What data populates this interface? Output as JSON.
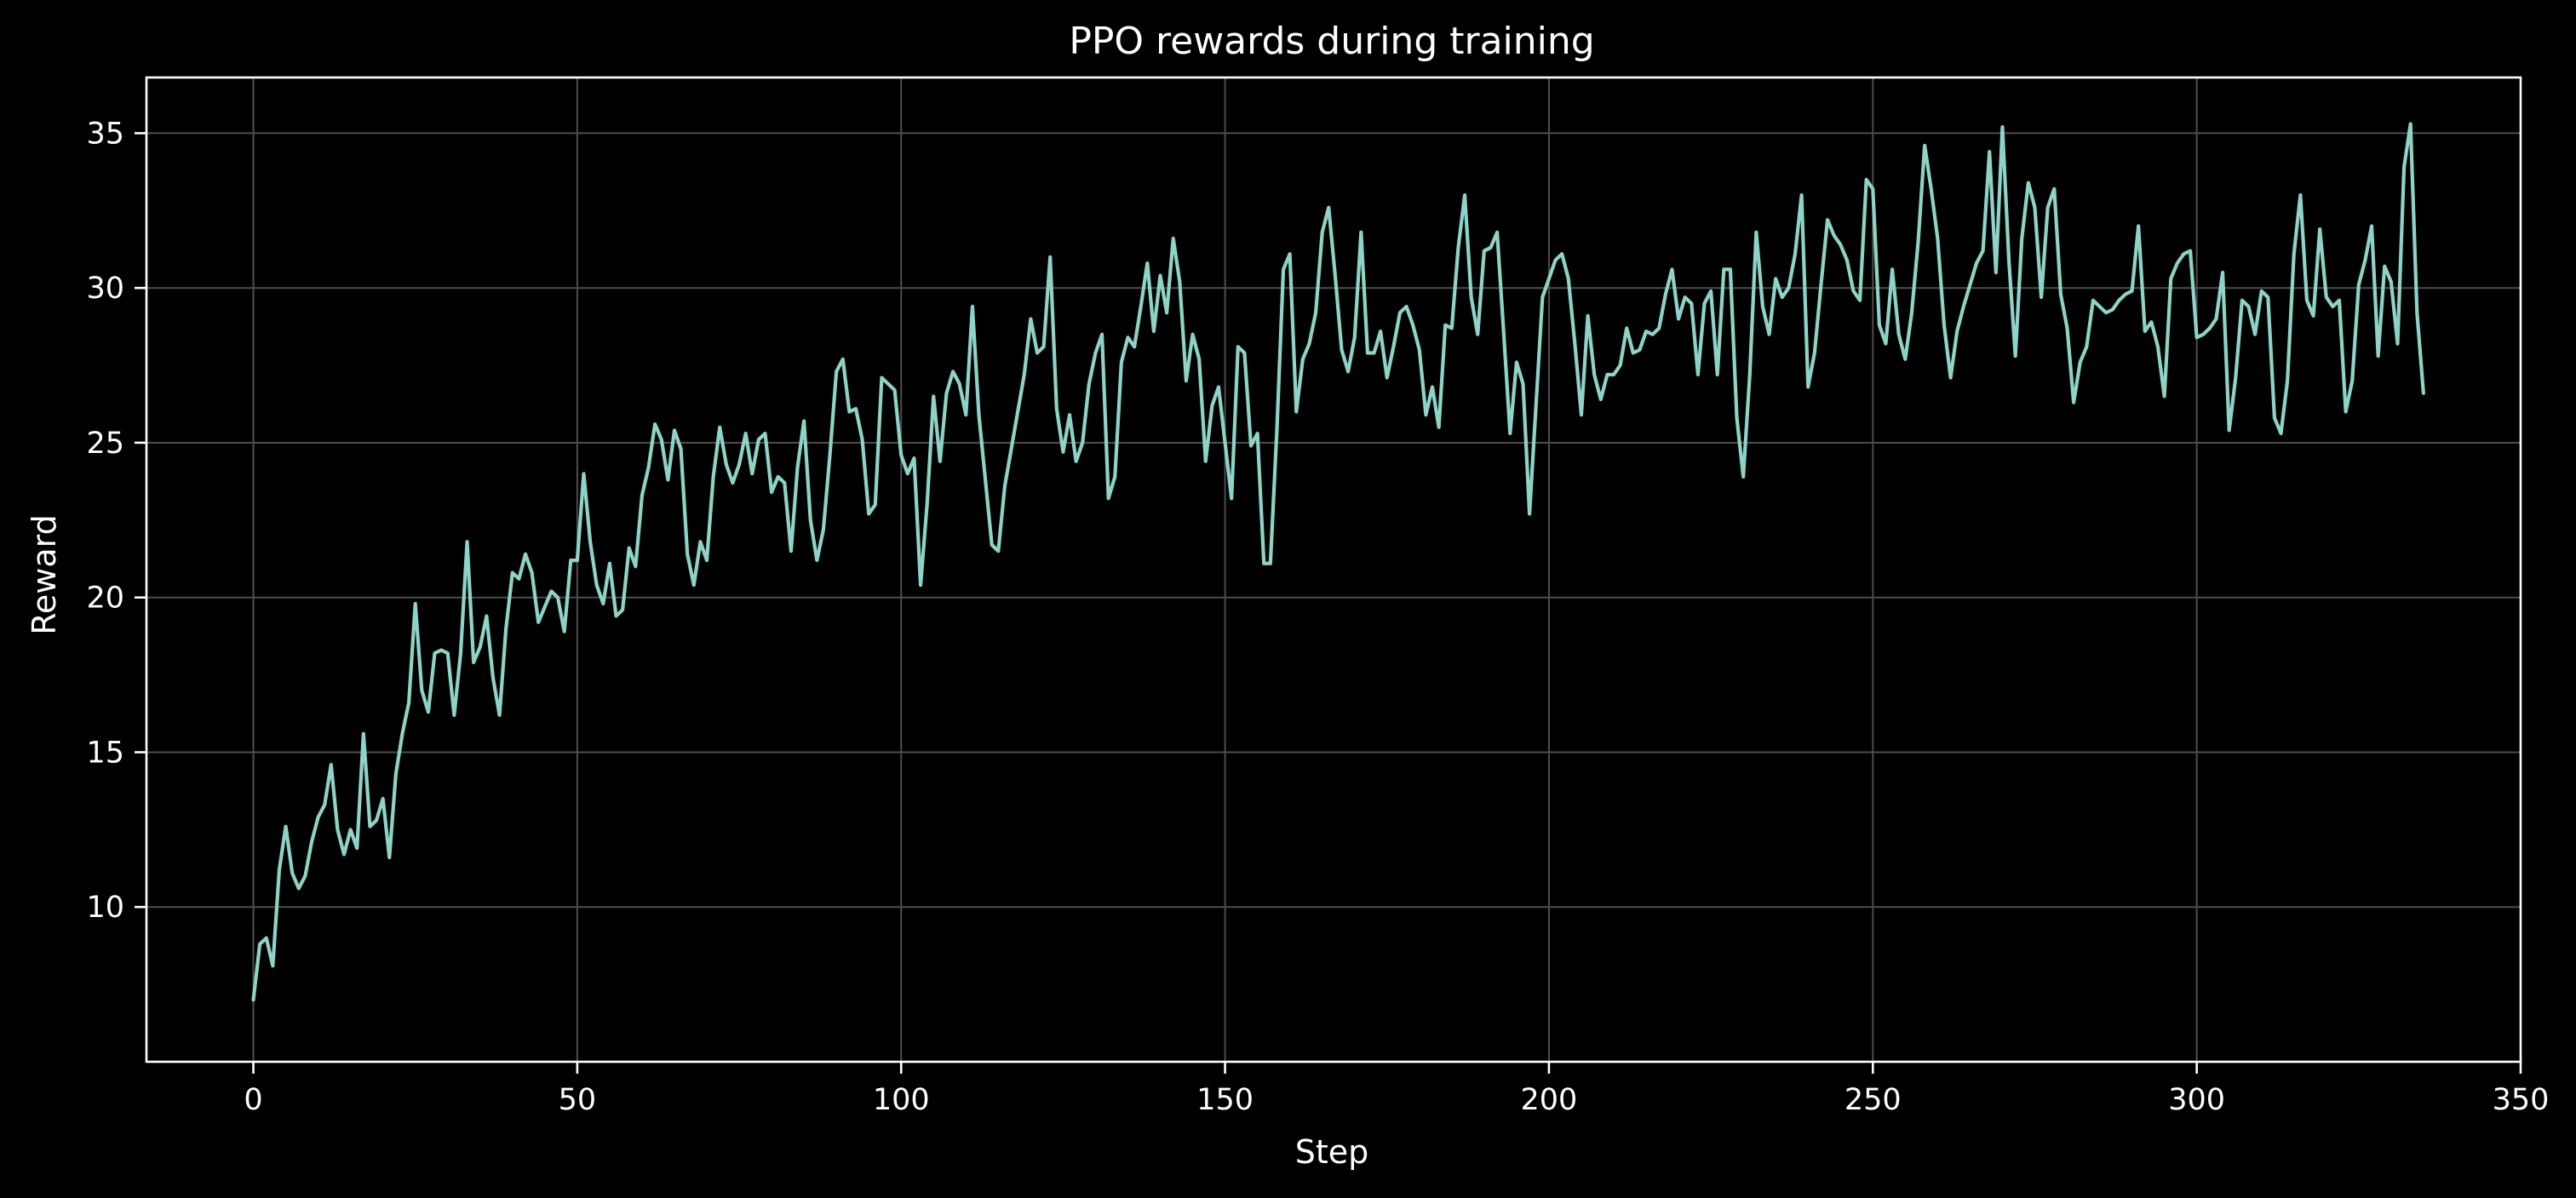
{
  "chart_data": {
    "type": "line",
    "title": "PPO rewards during training",
    "xlabel": "Step",
    "ylabel": "Reward",
    "xlim": [
      -16.5,
      350
    ],
    "ylim": [
      5.0,
      36.8
    ],
    "xticks": [
      0,
      50,
      100,
      150,
      200,
      250,
      300,
      350
    ],
    "yticks": [
      10,
      15,
      20,
      25,
      30,
      35
    ],
    "grid": true,
    "background": "#000000",
    "line_color": "#8dd3c7",
    "axis_color": "#ffffff",
    "grid_color": "#4d4d4d",
    "series": [
      {
        "name": "",
        "values": [
          7.0,
          8.8,
          9.0,
          8.1,
          11.2,
          12.6,
          11.1,
          10.6,
          11.0,
          12.1,
          12.9,
          13.3,
          14.6,
          12.5,
          11.7,
          12.5,
          11.9,
          15.6,
          12.6,
          12.8,
          13.5,
          11.6,
          14.3,
          15.6,
          16.6,
          19.8,
          17.0,
          16.3,
          18.2,
          18.3,
          18.2,
          16.2,
          18.2,
          21.8,
          17.9,
          18.4,
          19.4,
          17.4,
          16.2,
          19.0,
          20.8,
          20.6,
          21.4,
          20.8,
          19.2,
          19.7,
          20.2,
          20.0,
          18.9,
          21.2,
          21.2,
          24.0,
          21.8,
          20.4,
          19.8,
          21.1,
          19.4,
          19.6,
          21.6,
          21.0,
          23.3,
          24.2,
          25.6,
          25.1,
          23.8,
          25.4,
          24.8,
          21.4,
          20.4,
          21.8,
          21.2,
          23.9,
          25.5,
          24.3,
          23.7,
          24.3,
          25.3,
          24.0,
          25.1,
          25.3,
          23.4,
          23.9,
          23.7,
          21.5,
          24.2,
          25.7,
          22.5,
          21.2,
          22.2,
          24.6,
          27.3,
          27.7,
          26.0,
          26.1,
          25.1,
          22.7,
          23.0,
          27.1,
          26.9,
          26.7,
          24.6,
          24.0,
          24.5,
          20.4,
          23.0,
          26.5,
          24.4,
          26.6,
          27.3,
          26.9,
          25.9,
          29.4,
          25.9,
          23.8,
          21.7,
          21.5,
          23.6,
          24.8,
          26.0,
          27.2,
          29.0,
          27.9,
          28.1,
          31.0,
          26.1,
          24.7,
          25.9,
          24.4,
          25.0,
          26.9,
          27.9,
          28.5,
          23.2,
          23.9,
          27.6,
          28.4,
          28.1,
          29.4,
          30.8,
          28.6,
          30.4,
          29.2,
          31.6,
          30.2,
          27.0,
          28.5,
          27.7,
          24.4,
          26.2,
          26.8,
          25.0,
          23.2,
          28.1,
          27.9,
          24.9,
          25.3,
          21.1,
          21.1,
          25.4,
          30.6,
          31.1,
          26.0,
          27.7,
          28.2,
          29.2,
          31.8,
          32.6,
          30.4,
          28.0,
          27.3,
          28.4,
          31.8,
          27.9,
          27.9,
          28.6,
          27.1,
          28.1,
          29.2,
          29.4,
          28.8,
          28.0,
          25.9,
          26.8,
          25.5,
          28.8,
          28.7,
          31.3,
          33.0,
          29.7,
          28.5,
          31.2,
          31.3,
          31.8,
          28.6,
          25.3,
          27.6,
          26.9,
          22.7,
          26.2,
          29.7,
          30.3,
          30.9,
          31.1,
          30.3,
          28.2,
          25.9,
          29.1,
          27.2,
          26.4,
          27.2,
          27.2,
          27.5,
          28.7,
          27.9,
          28.0,
          28.6,
          28.5,
          28.7,
          29.8,
          30.6,
          29.0,
          29.7,
          29.5,
          27.2,
          29.5,
          29.9,
          27.2,
          30.6,
          30.6,
          25.8,
          23.9,
          27.2,
          31.8,
          29.4,
          28.5,
          30.3,
          29.7,
          30.0,
          31.1,
          33.0,
          26.8,
          27.9,
          30.1,
          32.2,
          31.7,
          31.4,
          30.9,
          29.9,
          29.6,
          33.5,
          33.2,
          28.8,
          28.2,
          30.6,
          28.5,
          27.7,
          29.2,
          31.5,
          34.6,
          33.2,
          31.6,
          28.8,
          27.1,
          28.6,
          29.4,
          30.1,
          30.8,
          31.2,
          34.4,
          30.5,
          35.2,
          30.9,
          27.8,
          31.6,
          33.4,
          32.6,
          29.7,
          32.6,
          33.2,
          29.8,
          28.7,
          26.3,
          27.6,
          28.1,
          29.6,
          29.4,
          29.2,
          29.3,
          29.6,
          29.8,
          29.9,
          32.0,
          28.6,
          28.9,
          28.1,
          26.5,
          30.3,
          30.8,
          31.1,
          31.2,
          28.4,
          28.5,
          28.7,
          29.0,
          30.5,
          25.4,
          27.1,
          29.6,
          29.4,
          28.5,
          29.9,
          29.7,
          25.8,
          25.3,
          27.0,
          31.1,
          33.0,
          29.6,
          29.1,
          31.9,
          29.7,
          29.4,
          29.6,
          26.0,
          27.0,
          30.1,
          30.9,
          32.0,
          27.8,
          30.7,
          30.2,
          28.2,
          33.9,
          35.3,
          29.2,
          26.6
        ]
      }
    ]
  }
}
